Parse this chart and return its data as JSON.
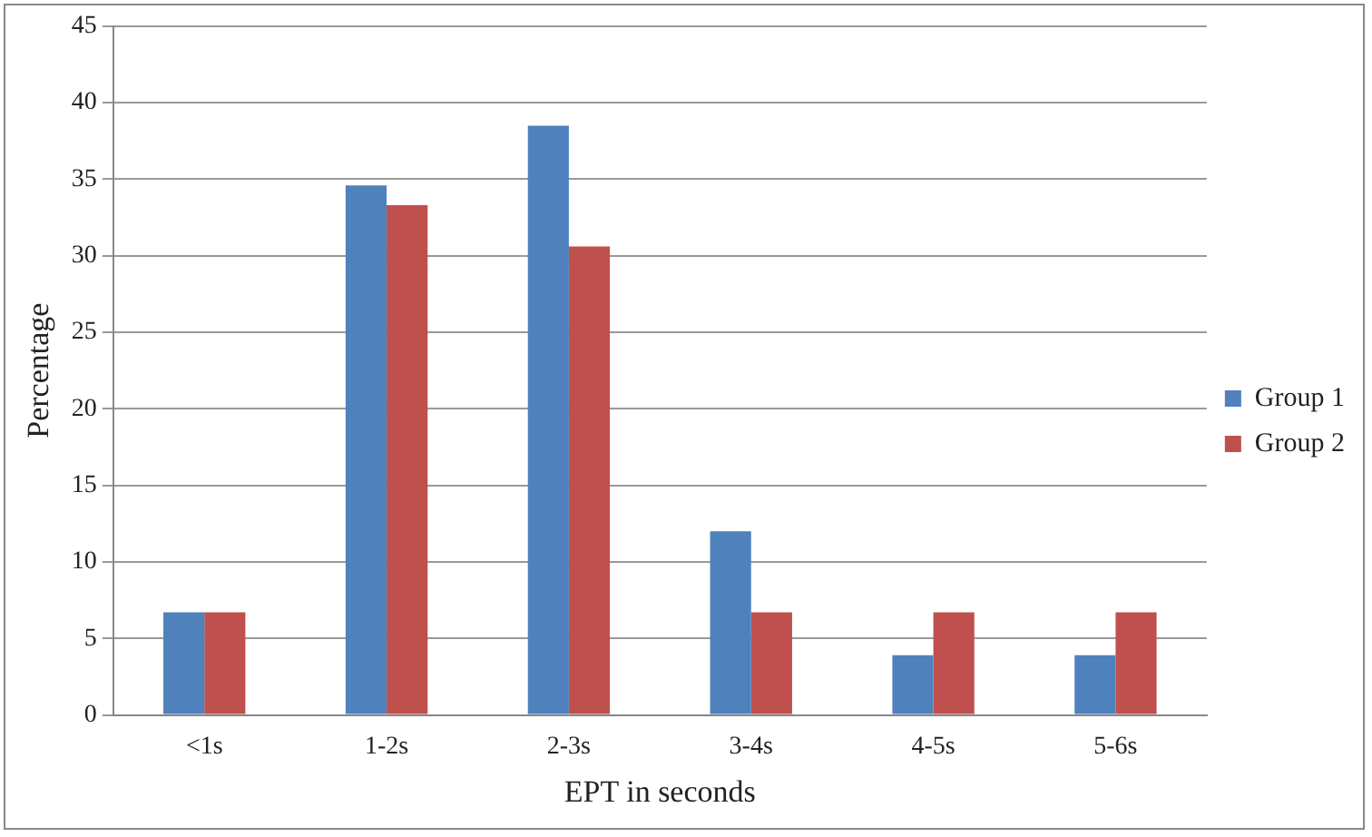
{
  "chart_data": {
    "type": "bar",
    "xlabel": "EPT in seconds",
    "ylabel": "Percentage",
    "categories": [
      "<1s",
      "1-2s",
      "2-3s",
      "3-4s",
      "4-5s",
      "5-6s"
    ],
    "series": [
      {
        "name": "Group 1",
        "color": "#4f81bd",
        "values": [
          6.7,
          34.6,
          38.5,
          12,
          3.9,
          3.9
        ]
      },
      {
        "name": "Group 2",
        "color": "#c0504d",
        "values": [
          6.7,
          33.3,
          30.6,
          6.7,
          6.7,
          6.7
        ]
      }
    ],
    "ylim": [
      0,
      45
    ],
    "yticks": [
      0,
      5,
      10,
      15,
      20,
      25,
      30,
      35,
      40,
      45
    ],
    "grid": "y",
    "legend": "right"
  }
}
